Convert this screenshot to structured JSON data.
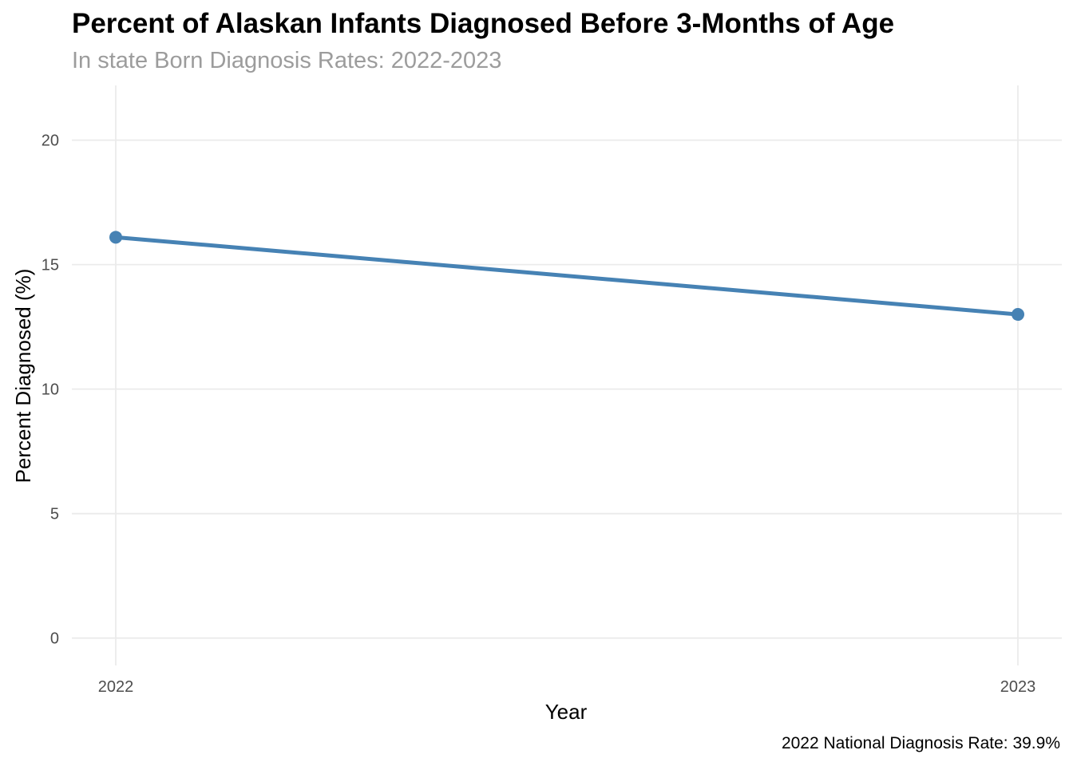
{
  "chart_data": {
    "type": "line",
    "title": "Percent of Alaskan Infants Diagnosed Before 3-Months of Age",
    "subtitle": "In state Born Diagnosis Rates: 2022-2023",
    "caption": "2022 National Diagnosis Rate: 39.9%",
    "xlabel": "Year",
    "ylabel": "Percent Diagnosed (%)",
    "x": [
      "2022",
      "2023"
    ],
    "series": [
      {
        "values": [
          16.1,
          13.0
        ],
        "color": "#4682B4"
      }
    ],
    "ylim": [
      -1.1,
      22.2
    ],
    "yticks": [
      0,
      5,
      10,
      15,
      20
    ],
    "ytick_labels": [
      "0",
      "5",
      "10",
      "15",
      "20"
    ],
    "xtick_labels": [
      "2022",
      "2023"
    ],
    "grid": true,
    "legend": "none"
  }
}
